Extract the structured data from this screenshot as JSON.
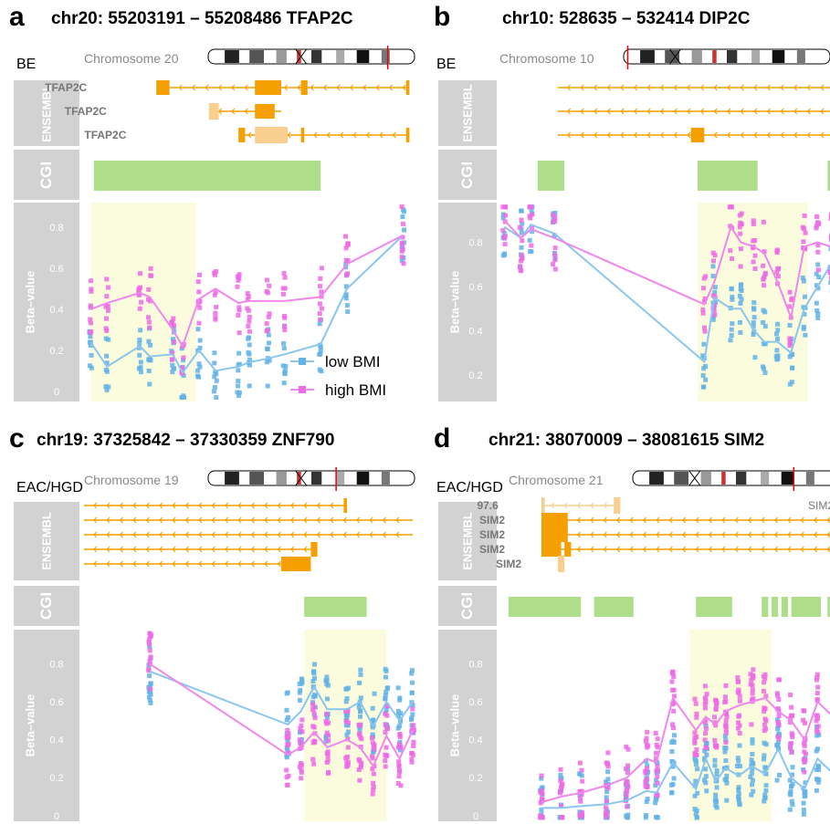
{
  "panels": [
    {
      "letter": "a",
      "title": "chr20: 55203191 – 55208486   TFAP2C",
      "condition": "BE",
      "chromosome_label": "Chromosome 20",
      "ensembl_label": "ENSEMBL",
      "cgi_label": "CGI",
      "ylabel": "Beta–value",
      "transcript_labels": [
        "TFAP2C",
        "TFAP2C",
        "TFAP2C"
      ],
      "legend": {
        "low": "low BMI",
        "high": "high BMI"
      }
    },
    {
      "letter": "b",
      "title": "chr10: 528635 – 532414   DIP2C",
      "condition": "BE",
      "chromosome_label": "Chromosome 10",
      "ensembl_label": "ENSEMBL",
      "cgi_label": "CGI",
      "ylabel": "Beta–value",
      "transcript_labels": []
    },
    {
      "letter": "c",
      "title": "chr19: 37325842 – 37330359   ZNF790",
      "condition": "EAC/HGD",
      "chromosome_label": "Chromosome 19",
      "ensembl_label": "ENSEMBL",
      "cgi_label": "CGI",
      "ylabel": "Beta–value",
      "transcript_labels": []
    },
    {
      "letter": "d",
      "title": "chr21: 38070009 – 38081615   SIM2",
      "condition": "EAC/HGD",
      "chromosome_label": "Chromosome 21",
      "ensembl_label": "ENSEMBL",
      "cgi_label": "CGI",
      "ylabel": "Beta–value",
      "transcript_labels": [
        "97.6",
        "SIM2",
        "SIM2",
        "SIM2",
        "SIM2",
        "SIM2"
      ]
    }
  ],
  "colors": {
    "low": "#61b3e8",
    "high": "#ee6ae6",
    "low_line": "#8ac6ee",
    "high_line": "#ee88ea",
    "gene": "#f5a000",
    "gene_light": "#f9cf90",
    "cgi": "#aede8a",
    "highlight": "#fbfbdd",
    "track_bg": "#d2d2d2"
  },
  "chart_data": [
    {
      "type": "line",
      "panel": "a",
      "ylim": [
        -0.05,
        0.92
      ],
      "yticks": [
        "0",
        "0.2",
        "0.4",
        "0.6",
        "0.8"
      ],
      "series": [
        {
          "name": "low BMI",
          "x": [
            0.02,
            0.07,
            0.17,
            0.2,
            0.27,
            0.3,
            0.35,
            0.4,
            0.47,
            0.5,
            0.56,
            0.61,
            0.72,
            0.8,
            0.97
          ],
          "values": [
            0.24,
            0.12,
            0.22,
            0.17,
            0.18,
            0.09,
            0.2,
            0.1,
            0.12,
            0.14,
            0.16,
            0.18,
            0.23,
            0.5,
            0.76
          ]
        },
        {
          "name": "high BMI",
          "x": [
            0.02,
            0.07,
            0.17,
            0.2,
            0.27,
            0.3,
            0.35,
            0.4,
            0.47,
            0.5,
            0.56,
            0.61,
            0.72,
            0.8,
            0.97
          ],
          "values": [
            0.4,
            0.43,
            0.48,
            0.46,
            0.3,
            0.22,
            0.45,
            0.5,
            0.43,
            0.44,
            0.44,
            0.44,
            0.46,
            0.62,
            0.76
          ]
        }
      ]
    },
    {
      "type": "line",
      "panel": "b",
      "ylim": [
        0.08,
        0.98
      ],
      "yticks": [
        "0.2",
        "0.4",
        "0.6",
        "0.8"
      ],
      "series": [
        {
          "name": "low BMI",
          "x": [
            0.02,
            0.07,
            0.1,
            0.17,
            0.62,
            0.65,
            0.7,
            0.73,
            0.77,
            0.8,
            0.84,
            0.88,
            0.92,
            0.96,
            1.0
          ],
          "values": [
            0.87,
            0.82,
            0.88,
            0.84,
            0.26,
            0.55,
            0.5,
            0.5,
            0.4,
            0.35,
            0.35,
            0.3,
            0.5,
            0.6,
            0.7
          ]
        },
        {
          "name": "high BMI",
          "x": [
            0.02,
            0.07,
            0.1,
            0.17,
            0.62,
            0.65,
            0.7,
            0.73,
            0.77,
            0.8,
            0.84,
            0.88,
            0.92,
            0.96,
            1.0
          ],
          "values": [
            0.9,
            0.82,
            0.86,
            0.82,
            0.52,
            0.62,
            0.87,
            0.8,
            0.78,
            0.75,
            0.62,
            0.46,
            0.78,
            0.8,
            0.78
          ]
        }
      ]
    },
    {
      "type": "line",
      "panel": "c",
      "ylim": [
        -0.03,
        0.98
      ],
      "yticks": [
        "0",
        "0.2",
        "0.4",
        "0.6",
        "0.8"
      ],
      "series": [
        {
          "name": "low BMI",
          "x": [
            0.2,
            0.62,
            0.66,
            0.7,
            0.74,
            0.8,
            0.84,
            0.88,
            0.92,
            0.96,
            1.0
          ],
          "values": [
            0.76,
            0.48,
            0.55,
            0.68,
            0.56,
            0.56,
            0.6,
            0.47,
            0.6,
            0.5,
            0.6
          ]
        },
        {
          "name": "high BMI",
          "x": [
            0.2,
            0.62,
            0.66,
            0.7,
            0.74,
            0.8,
            0.84,
            0.88,
            0.92,
            0.96,
            1.0
          ],
          "values": [
            0.8,
            0.32,
            0.36,
            0.44,
            0.36,
            0.4,
            0.36,
            0.26,
            0.42,
            0.3,
            0.45
          ]
        }
      ]
    },
    {
      "type": "line",
      "panel": "d",
      "ylim": [
        -0.03,
        0.98
      ],
      "yticks": [
        "0",
        "0.2",
        "0.4",
        "0.6",
        "0.8"
      ],
      "series": [
        {
          "name": "low BMI",
          "x": [
            0.1,
            0.16,
            0.22,
            0.3,
            0.36,
            0.42,
            0.45,
            0.5,
            0.57,
            0.6,
            0.63,
            0.66,
            0.7,
            0.74,
            0.78,
            0.82,
            0.86,
            0.9,
            0.94,
            1.0
          ],
          "values": [
            0.04,
            0.04,
            0.05,
            0.06,
            0.08,
            0.13,
            0.12,
            0.28,
            0.14,
            0.3,
            0.18,
            0.25,
            0.21,
            0.26,
            0.22,
            0.35,
            0.2,
            0.14,
            0.3,
            0.2
          ]
        },
        {
          "name": "high BMI",
          "x": [
            0.1,
            0.16,
            0.22,
            0.3,
            0.36,
            0.42,
            0.45,
            0.5,
            0.57,
            0.6,
            0.63,
            0.66,
            0.7,
            0.74,
            0.78,
            0.82,
            0.86,
            0.9,
            0.94,
            1.0
          ],
          "values": [
            0.07,
            0.1,
            0.12,
            0.16,
            0.2,
            0.3,
            0.28,
            0.62,
            0.45,
            0.52,
            0.48,
            0.55,
            0.58,
            0.6,
            0.62,
            0.55,
            0.5,
            0.4,
            0.6,
            0.5
          ]
        }
      ]
    }
  ]
}
